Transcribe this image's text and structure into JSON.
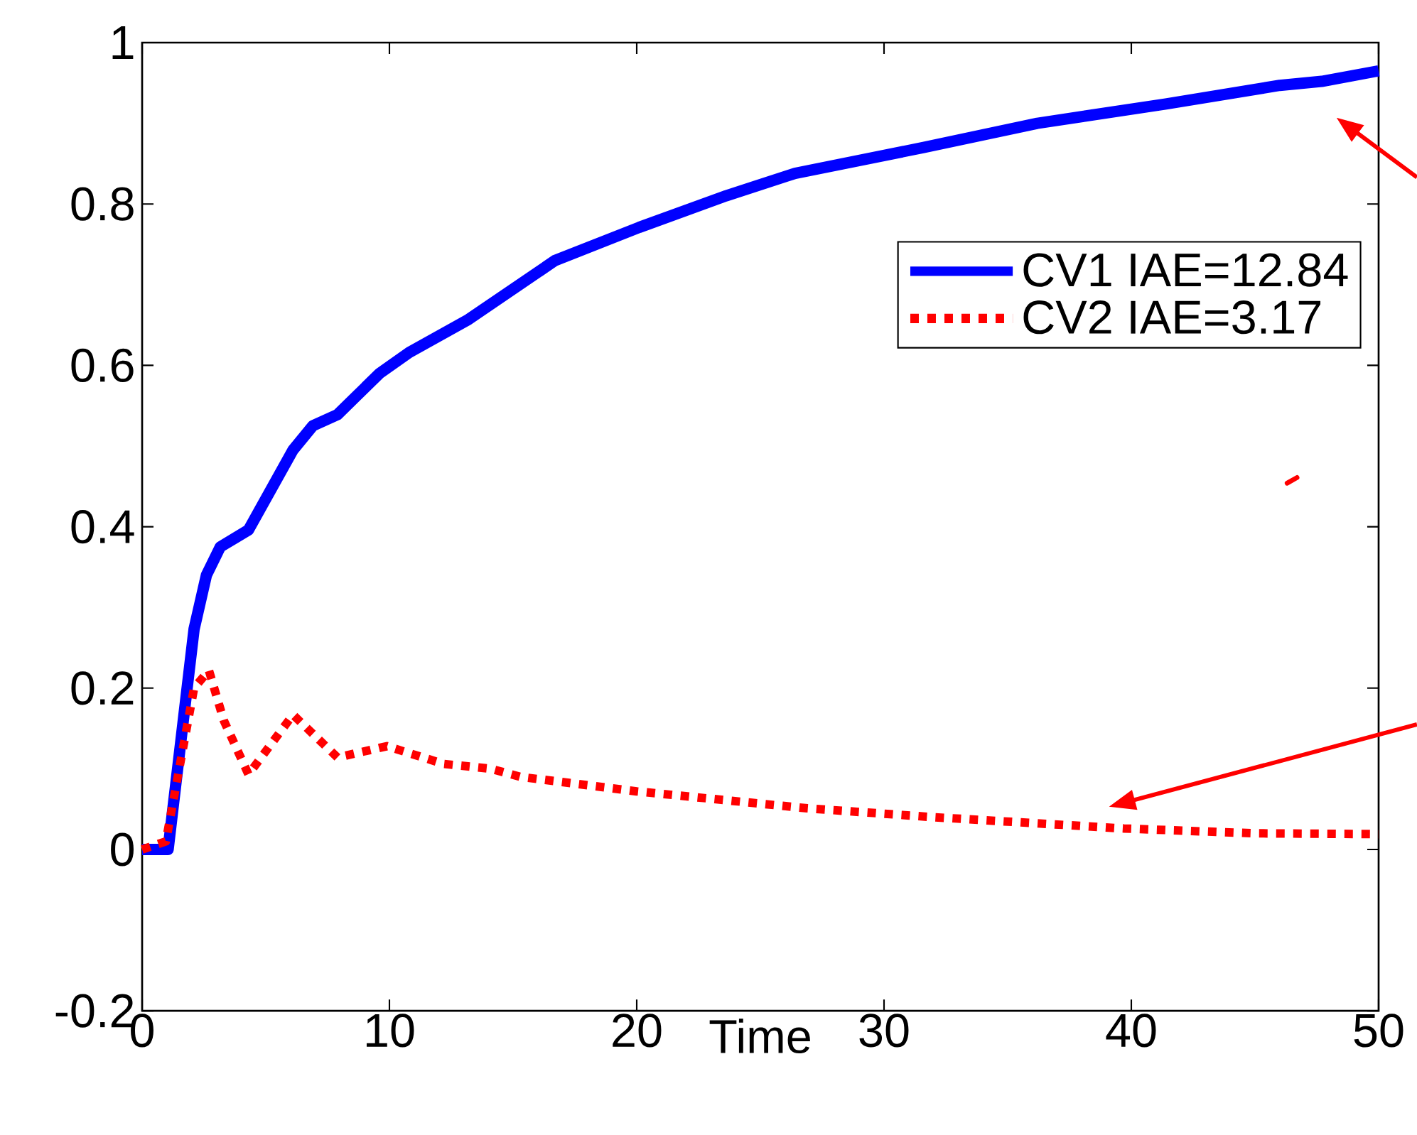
{
  "chart_data": {
    "type": "line",
    "xlabel": "Time",
    "xlim": [
      0,
      50
    ],
    "xticks": [
      0,
      10,
      20,
      30,
      40,
      50
    ],
    "ylim": [
      -0.2,
      1
    ],
    "yticks": [
      -0.2,
      0,
      0.2,
      0.4,
      0.6,
      0.8,
      1
    ],
    "legend": "top right",
    "grid": false,
    "marker": "none",
    "series": [
      {
        "name": "CV1 IAE=12.84",
        "color": "#0000ff",
        "line_style": "solid",
        "x": [
          0,
          1.05,
          2.1,
          2.6,
          3.16,
          4.3,
          6.1,
          6.9,
          7.9,
          9.6,
          10.8,
          13.2,
          16.7,
          20.1,
          23.6,
          26.4,
          31.6,
          36.2,
          41.4,
          46,
          47.7,
          50
        ],
        "values": [
          0,
          0,
          0.273,
          0.34,
          0.375,
          0.396,
          0.495,
          0.525,
          0.539,
          0.59,
          0.616,
          0.657,
          0.73,
          0.771,
          0.81,
          0.838,
          0.87,
          0.9,
          0.924,
          0.947,
          0.952,
          0.965
        ]
      },
      {
        "name": "CV2 IAE=3.17",
        "color": "#ff0000",
        "line_style": "dotted",
        "x": [
          0,
          0.96,
          2.1,
          2.7,
          3.3,
          4.3,
          6.1,
          7.9,
          9.9,
          12.2,
          14.1,
          15.3,
          20,
          26.9,
          32,
          39.7,
          45,
          50
        ],
        "values": [
          0,
          0.01,
          0.2,
          0.222,
          0.16,
          0.093,
          0.167,
          0.114,
          0.128,
          0.106,
          0.1,
          0.09,
          0.072,
          0.051,
          0.04,
          0.026,
          0.02,
          0.019
        ]
      }
    ]
  }
}
